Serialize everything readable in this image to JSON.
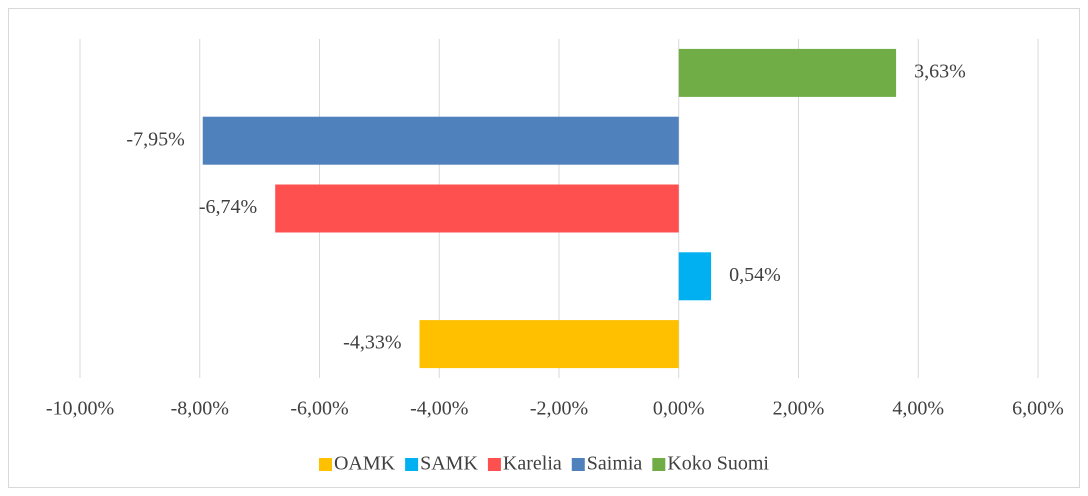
{
  "chart_data": {
    "type": "bar",
    "orientation": "horizontal",
    "series": [
      {
        "name": "OAMK",
        "color": "#ffc000",
        "values": [
          -4.33
        ],
        "value_labels": [
          "-4,33%"
        ]
      },
      {
        "name": "SAMK",
        "color": "#00b0f0",
        "values": [
          0.54
        ],
        "value_labels": [
          "0,54%"
        ]
      },
      {
        "name": "Karelia",
        "color": "#ff5050",
        "values": [
          -6.74
        ],
        "value_labels": [
          "-6,74%"
        ]
      },
      {
        "name": "Saimia",
        "color": "#4f81bd",
        "values": [
          -7.95
        ],
        "value_labels": [
          "-7,95%"
        ]
      },
      {
        "name": "Koko Suomi",
        "color": "#70ad47",
        "values": [
          3.63
        ],
        "value_labels": [
          "3,63%"
        ]
      }
    ],
    "xlim": [
      -10,
      6
    ],
    "xticks": [
      {
        "value": -10,
        "label": "-10,00%"
      },
      {
        "value": -8,
        "label": "-8,00%"
      },
      {
        "value": -6,
        "label": "-6,00%"
      },
      {
        "value": -4,
        "label": "-4,00%"
      },
      {
        "value": -2,
        "label": "-2,00%"
      },
      {
        "value": 0,
        "label": "0,00%"
      },
      {
        "value": 2,
        "label": "2,00%"
      },
      {
        "value": 4,
        "label": "4,00%"
      },
      {
        "value": 6,
        "label": "6,00%"
      }
    ],
    "grid": true,
    "legend": "bottom"
  }
}
